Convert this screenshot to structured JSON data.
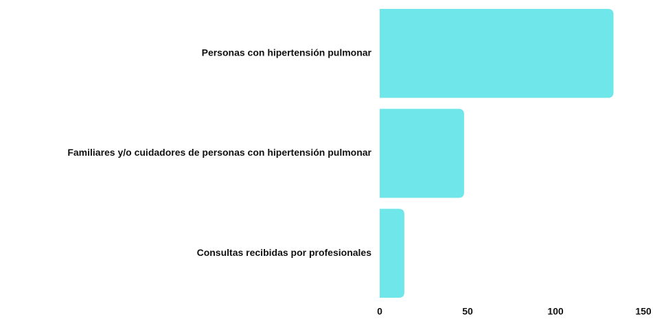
{
  "chart_data": {
    "type": "hbar",
    "categories": [
      "Personas con hipertensión pulmonar",
      "Familiares y/o cuidadores de personas con hipertensión pulmonar",
      "Consultas recibidas por profesionales"
    ],
    "values": [
      133,
      48,
      14
    ],
    "color": "#6ee6ea",
    "xlim": [
      0,
      150
    ],
    "xticks": [
      0,
      50,
      100,
      150
    ],
    "grid": false
  }
}
